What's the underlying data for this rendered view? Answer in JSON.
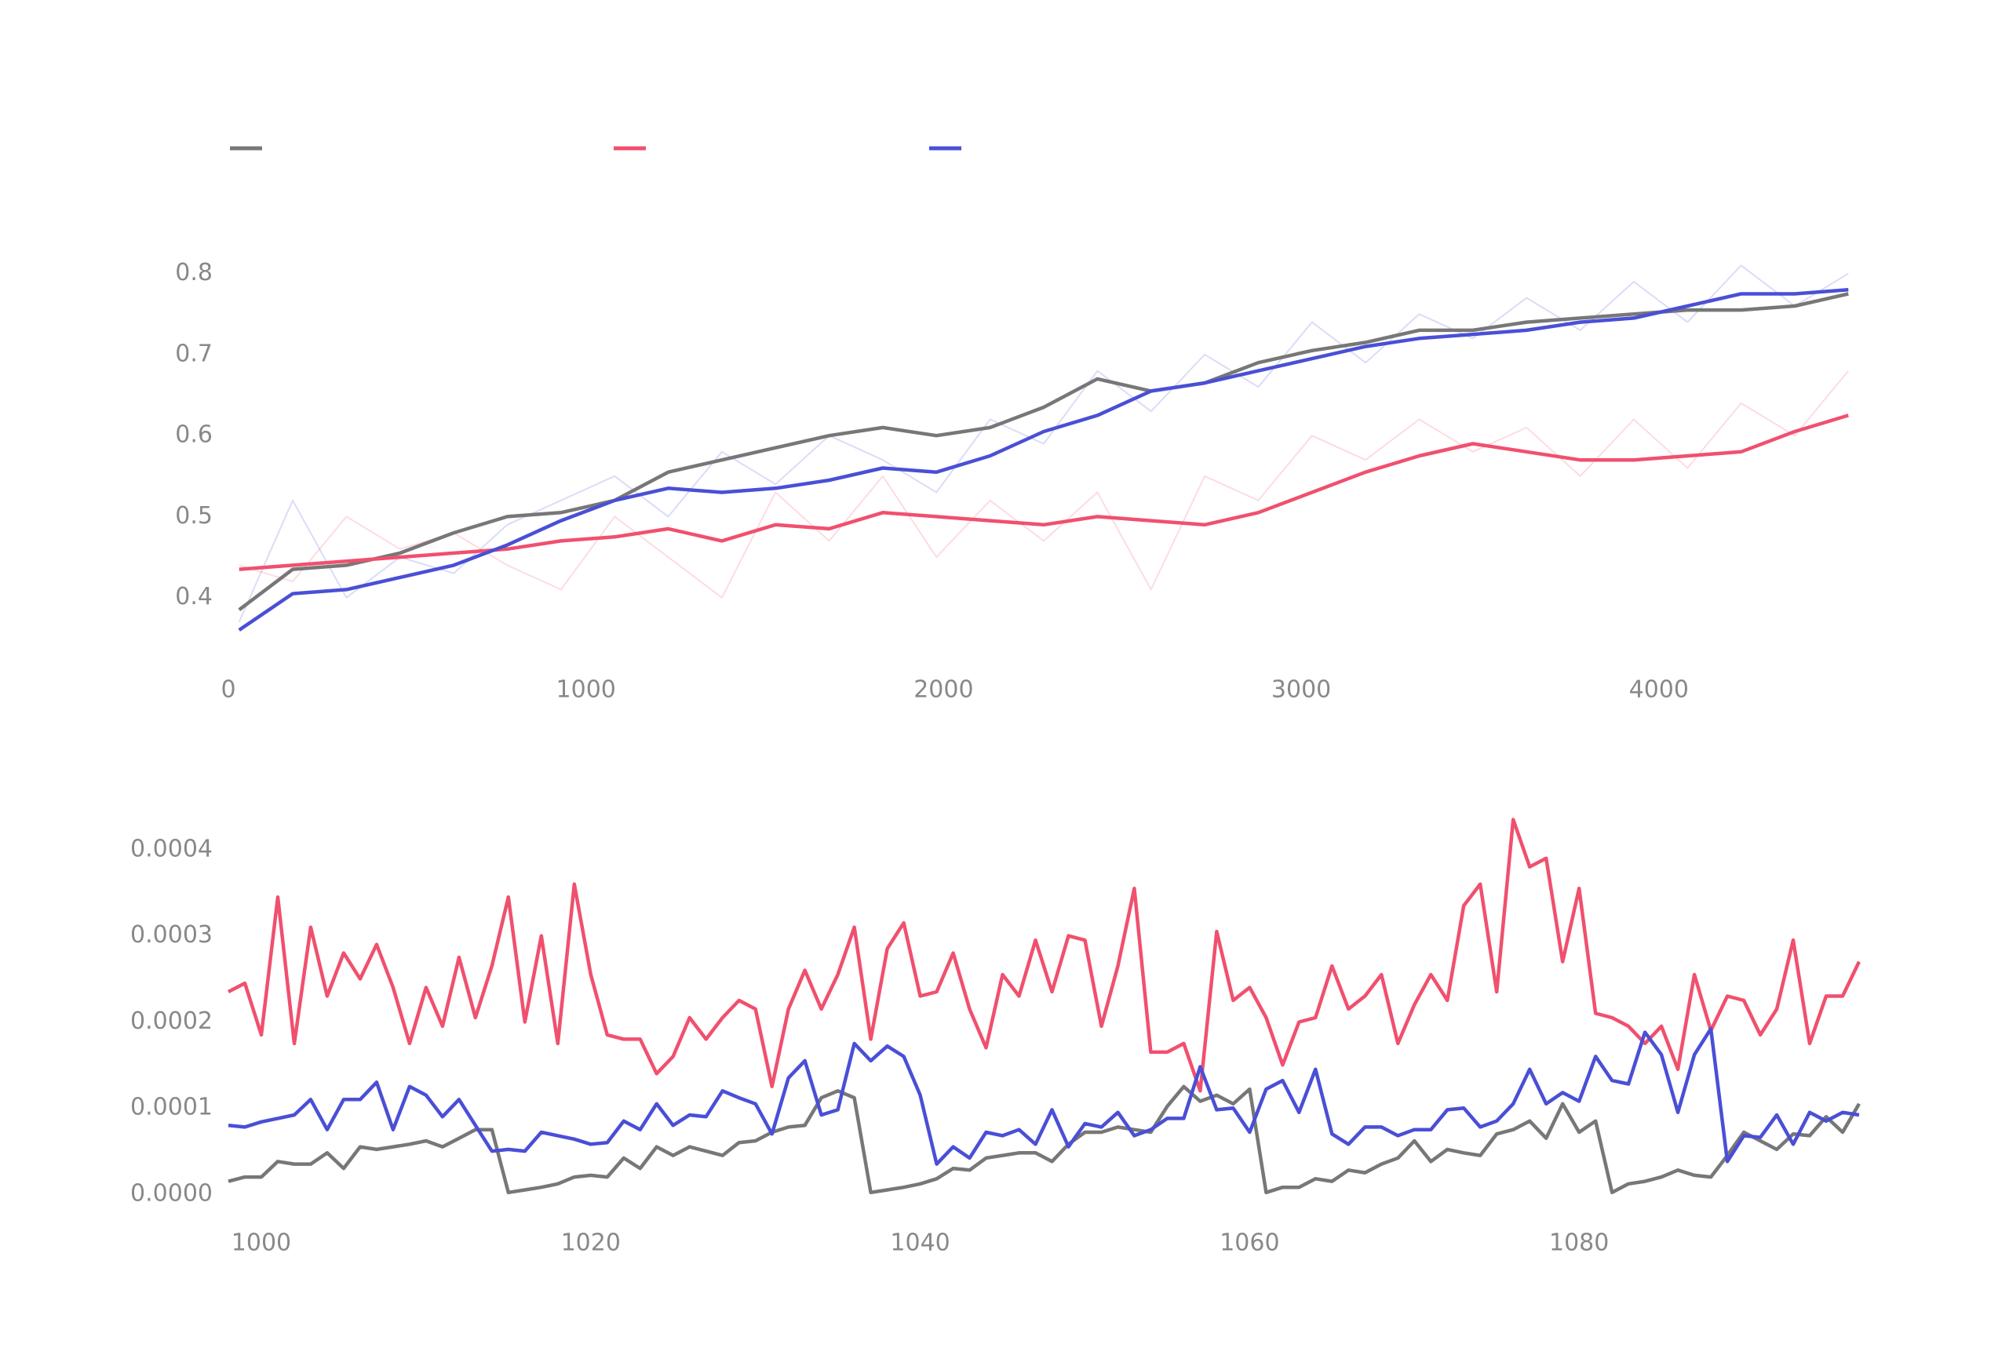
{
  "chart_data": [
    {
      "type": "line",
      "legend": true,
      "x": [
        30,
        180,
        330,
        480,
        630,
        780,
        930,
        1080,
        1230,
        1380,
        1530,
        1680,
        1830,
        1980,
        2130,
        2280,
        2430,
        2580,
        2730,
        2880,
        3030,
        3180,
        3330,
        3480,
        3630,
        3780,
        3930,
        4080,
        4230,
        4380,
        4530
      ],
      "xlim": [
        0,
        4560
      ],
      "xticks": [
        0,
        1000,
        2000,
        3000,
        4000
      ],
      "ylim": [
        0.33,
        0.82
      ],
      "yticks": [
        0.4,
        0.5,
        0.6,
        0.7,
        0.8
      ],
      "series": [
        {
          "color": "#f0506e",
          "opacity": 0.2,
          "values": [
            0.44,
            0.42,
            0.5,
            0.46,
            0.48,
            0.44,
            0.41,
            0.5,
            0.45,
            0.4,
            0.53,
            0.47,
            0.55,
            0.45,
            0.52,
            0.47,
            0.53,
            0.41,
            0.55,
            0.52,
            0.6,
            0.57,
            0.62,
            0.58,
            0.61,
            0.55,
            0.62,
            0.56,
            0.64,
            0.6,
            0.68
          ]
        },
        {
          "color": "#4a4fd6",
          "opacity": 0.2,
          "values": [
            0.37,
            0.52,
            0.4,
            0.45,
            0.43,
            0.49,
            0.52,
            0.55,
            0.5,
            0.58,
            0.54,
            0.6,
            0.57,
            0.53,
            0.62,
            0.59,
            0.68,
            0.63,
            0.7,
            0.66,
            0.74,
            0.69,
            0.75,
            0.72,
            0.77,
            0.73,
            0.79,
            0.74,
            0.81,
            0.76,
            0.8
          ]
        },
        {
          "color": "#777777",
          "values": [
            0.385,
            0.435,
            0.44,
            0.455,
            0.48,
            0.5,
            0.505,
            0.52,
            0.555,
            0.57,
            0.585,
            0.6,
            0.61,
            0.6,
            0.61,
            0.635,
            0.67,
            0.655,
            0.665,
            0.69,
            0.705,
            0.715,
            0.73,
            0.73,
            0.74,
            0.745,
            0.75,
            0.755,
            0.755,
            0.76,
            0.775
          ]
        },
        {
          "color": "#f0506e",
          "values": [
            0.435,
            0.44,
            0.445,
            0.45,
            0.455,
            0.46,
            0.47,
            0.475,
            0.485,
            0.47,
            0.49,
            0.485,
            0.505,
            0.5,
            0.495,
            0.49,
            0.5,
            0.495,
            0.49,
            0.505,
            0.53,
            0.555,
            0.575,
            0.59,
            0.58,
            0.57,
            0.57,
            0.575,
            0.58,
            0.605,
            0.625
          ]
        },
        {
          "color": "#4a4fd6",
          "values": [
            0.36,
            0.405,
            0.41,
            0.425,
            0.44,
            0.465,
            0.495,
            0.52,
            0.535,
            0.53,
            0.535,
            0.545,
            0.56,
            0.555,
            0.575,
            0.605,
            0.625,
            0.655,
            0.665,
            0.68,
            0.695,
            0.71,
            0.72,
            0.725,
            0.73,
            0.74,
            0.745,
            0.76,
            0.775,
            0.775,
            0.78
          ]
        }
      ]
    },
    {
      "type": "line",
      "x": [
        998,
        999,
        1000,
        1001,
        1002,
        1003,
        1004,
        1005,
        1006,
        1007,
        1008,
        1009,
        1010,
        1011,
        1012,
        1013,
        1014,
        1015,
        1016,
        1017,
        1018,
        1019,
        1020,
        1021,
        1022,
        1023,
        1024,
        1025,
        1026,
        1027,
        1028,
        1029,
        1030,
        1031,
        1032,
        1033,
        1034,
        1035,
        1036,
        1037,
        1038,
        1039,
        1040,
        1041,
        1042,
        1043,
        1044,
        1045,
        1046,
        1047,
        1048,
        1049,
        1050,
        1051,
        1052,
        1053,
        1054,
        1055,
        1056,
        1057,
        1058,
        1059,
        1060,
        1061,
        1062,
        1063,
        1064,
        1065,
        1066,
        1067,
        1068,
        1069,
        1070,
        1071,
        1072,
        1073,
        1074,
        1075,
        1076,
        1077,
        1078,
        1079,
        1080,
        1081,
        1082,
        1083,
        1084,
        1085,
        1086,
        1087,
        1088,
        1089,
        1090,
        1091,
        1092,
        1093,
        1094,
        1095,
        1096,
        1097
      ],
      "xlim": [
        998,
        1097
      ],
      "xticks": [
        1000,
        1020,
        1040,
        1060,
        1080
      ],
      "ylim": [
        -1e-05,
        0.00045
      ],
      "yticks": [
        {
          "value": 0,
          "label": "0.0000"
        },
        0.0001,
        0.0002,
        0.0003,
        0.0004
      ],
      "series": [
        {
          "color": "#777777",
          "values": [
            1.5e-05,
            2e-05,
            2e-05,
            3.8e-05,
            3.5e-05,
            3.5e-05,
            4.8e-05,
            3e-05,
            5.5e-05,
            5.2e-05,
            5.5e-05,
            5.8e-05,
            6.2e-05,
            5.5e-05,
            6.5e-05,
            7.5e-05,
            7.5e-05,
            2e-06,
            5e-06,
            8e-06,
            1.2e-05,
            2e-05,
            2.2e-05,
            2e-05,
            4.2e-05,
            3e-05,
            5.5e-05,
            4.5e-05,
            5.5e-05,
            5e-05,
            4.5e-05,
            6e-05,
            6.2e-05,
            7.2e-05,
            7.8e-05,
            8e-05,
            0.000112,
            0.00012,
            0.000112,
            2e-06,
            5e-06,
            8e-06,
            1.2e-05,
            1.8e-05,
            3e-05,
            2.8e-05,
            4.2e-05,
            4.5e-05,
            4.8e-05,
            4.8e-05,
            3.8e-05,
            5.8e-05,
            7.2e-05,
            7.2e-05,
            7.8e-05,
            7.5e-05,
            7.2e-05,
            0.000102,
            0.000125,
            0.000108,
            0.000115,
            0.000105,
            0.000122,
            2e-06,
            8e-06,
            8e-06,
            1.8e-05,
            1.5e-05,
            2.8e-05,
            2.5e-05,
            3.5e-05,
            4.2e-05,
            6.2e-05,
            3.8e-05,
            5.2e-05,
            4.8e-05,
            4.5e-05,
            7e-05,
            7.5e-05,
            8.5e-05,
            6.5e-05,
            0.000105,
            7.2e-05,
            8.5e-05,
            2e-06,
            1.2e-05,
            1.5e-05,
            2e-05,
            2.8e-05,
            2.2e-05,
            2e-05,
            4.5e-05,
            7.2e-05,
            6.2e-05,
            5.2e-05,
            7e-05,
            6.8e-05,
            9e-05,
            7.2e-05,
            0.000105
          ]
        },
        {
          "color": "#f0506e",
          "values": [
            0.000235,
            0.000245,
            0.000185,
            0.000345,
            0.000175,
            0.00031,
            0.00023,
            0.00028,
            0.00025,
            0.00029,
            0.00024,
            0.000175,
            0.00024,
            0.000195,
            0.000275,
            0.000205,
            0.000265,
            0.000345,
            0.0002,
            0.0003,
            0.000175,
            0.00036,
            0.000255,
            0.000185,
            0.00018,
            0.00018,
            0.00014,
            0.00016,
            0.000205,
            0.00018,
            0.000205,
            0.000225,
            0.000215,
            0.000125,
            0.000215,
            0.00026,
            0.000215,
            0.000255,
            0.00031,
            0.00018,
            0.000285,
            0.000315,
            0.00023,
            0.000235,
            0.00028,
            0.000215,
            0.00017,
            0.000255,
            0.00023,
            0.000295,
            0.000235,
            0.0003,
            0.000295,
            0.000195,
            0.000265,
            0.000355,
            0.000165,
            0.000165,
            0.000175,
            0.00012,
            0.000305,
            0.000225,
            0.00024,
            0.000205,
            0.00015,
            0.0002,
            0.000205,
            0.000265,
            0.000215,
            0.00023,
            0.000255,
            0.000175,
            0.00022,
            0.000255,
            0.000225,
            0.000335,
            0.00036,
            0.000235,
            0.000435,
            0.00038,
            0.00039,
            0.00027,
            0.000355,
            0.00021,
            0.000205,
            0.000195,
            0.000175,
            0.000195,
            0.000145,
            0.000255,
            0.00019,
            0.00023,
            0.000225,
            0.000185,
            0.000215,
            0.000295,
            0.000175,
            0.00023,
            0.00023,
            0.00027
          ]
        },
        {
          "color": "#4a4fd6",
          "values": [
            8e-05,
            7.8e-05,
            8.4e-05,
            8.8e-05,
            9.2e-05,
            0.00011,
            7.5e-05,
            0.00011,
            0.00011,
            0.00013,
            7.5e-05,
            0.000125,
            0.000115,
            9e-05,
            0.00011,
            8e-05,
            5e-05,
            5.2e-05,
            5e-05,
            7.2e-05,
            6.8e-05,
            6.4e-05,
            5.8e-05,
            6e-05,
            8.5e-05,
            7.5e-05,
            0.000105,
            8e-05,
            9.2e-05,
            9e-05,
            0.00012,
            0.000112,
            0.000105,
            7e-05,
            0.000135,
            0.000155,
            9.2e-05,
            9.8e-05,
            0.000175,
            0.000155,
            0.000172,
            0.00016,
            0.000115,
            3.5e-05,
            5.5e-05,
            4.2e-05,
            7.2e-05,
            6.8e-05,
            7.5e-05,
            5.8e-05,
            9.8e-05,
            5.5e-05,
            8.2e-05,
            7.8e-05,
            9.5e-05,
            6.8e-05,
            7.5e-05,
            8.8e-05,
            8.8e-05,
            0.000148,
            9.8e-05,
            0.0001,
            7.2e-05,
            0.000122,
            0.000132,
            9.5e-05,
            0.000145,
            7e-05,
            5.8e-05,
            7.8e-05,
            7.8e-05,
            6.8e-05,
            7.5e-05,
            7.5e-05,
            9.8e-05,
            0.0001,
            7.8e-05,
            8.5e-05,
            0.000105,
            0.000145,
            0.000105,
            0.000118,
            0.000108,
            0.00016,
            0.000132,
            0.000128,
            0.000188,
            0.000162,
            9.5e-05,
            0.000162,
            0.000192,
            3.8e-05,
            6.8e-05,
            6.6e-05,
            9.2e-05,
            5.8e-05,
            9.5e-05,
            8.5e-05,
            9.5e-05,
            9.2e-05
          ]
        }
      ]
    }
  ]
}
